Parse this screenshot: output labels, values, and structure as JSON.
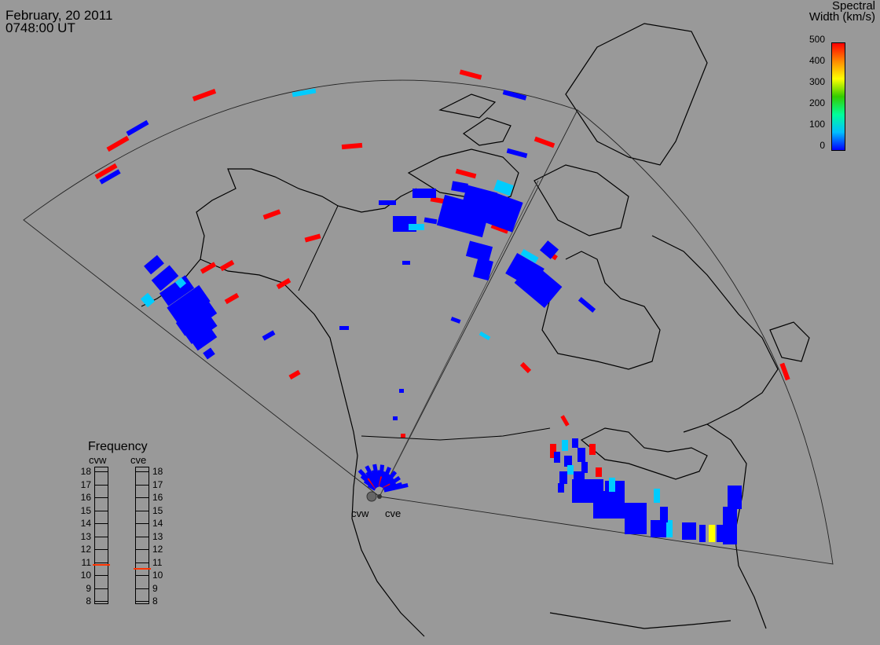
{
  "header": {
    "date": "February, 20 2011",
    "time": "0748:00 UT"
  },
  "colorbar": {
    "title_line1": "Spectral",
    "title_line2": "Width (km/s)",
    "ticks": [
      "500",
      "400",
      "300",
      "200",
      "100",
      "0"
    ],
    "min": 0,
    "max": 500,
    "gradient": [
      "#0000ff",
      "#00bfff",
      "#00ff99",
      "#33cc00",
      "#ffff00",
      "#ff8800",
      "#ff0000"
    ]
  },
  "frequency_panel": {
    "title": "Frequency",
    "radars": [
      {
        "code": "cvw",
        "value_mhz": 10.8,
        "marker_color": "#ff3300"
      },
      {
        "code": "cve",
        "value_mhz": 10.5,
        "marker_color": "#ff3300"
      }
    ],
    "scale": [
      "18",
      "17",
      "16",
      "15",
      "14",
      "13",
      "12",
      "11",
      "10",
      "9",
      "8"
    ]
  },
  "station_labels": {
    "west": "cvw",
    "east": "cve"
  },
  "colors": {
    "background": "#999999",
    "low": "#0000ff",
    "mid": "#00ccff",
    "high": "#ff0000",
    "yellow": "#ffff00"
  }
}
